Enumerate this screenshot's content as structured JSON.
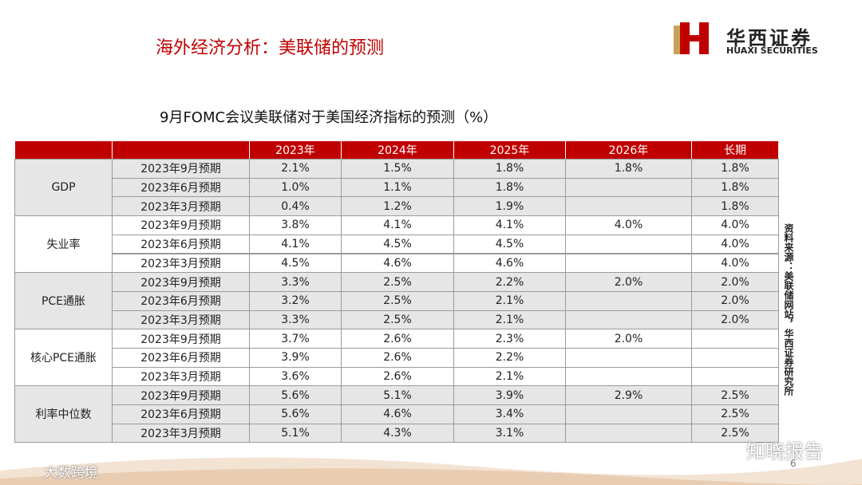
{
  "header": {
    "title": "海外经济分析：美联储的预测",
    "logo_cn": "华西证券",
    "logo_en": "HUAXI SECURITIES"
  },
  "table": {
    "title": "9月FOMC会议美联储对于美国经济指标的预测（%）",
    "columns": [
      "2023年",
      "2024年",
      "2025年",
      "2026年",
      "长期"
    ],
    "groups": [
      {
        "name": "GDP",
        "rows": [
          {
            "period": "2023年9月预期",
            "values": [
              "2.1%",
              "1.5%",
              "1.8%",
              "1.8%",
              "1.8%"
            ]
          },
          {
            "period": "2023年6月预期",
            "values": [
              "1.0%",
              "1.1%",
              "1.8%",
              null,
              "1.8%"
            ]
          },
          {
            "period": "2023年3月预期",
            "values": [
              "0.4%",
              "1.2%",
              "1.9%",
              null,
              "1.8%"
            ]
          }
        ]
      },
      {
        "name": "失业率",
        "rows": [
          {
            "period": "2023年9月预期",
            "values": [
              "3.8%",
              "4.1%",
              "4.1%",
              "4.0%",
              "4.0%"
            ]
          },
          {
            "period": "2023年6月预期",
            "values": [
              "4.1%",
              "4.5%",
              "4.5%",
              null,
              "4.0%"
            ]
          },
          {
            "period": "2023年3月预期",
            "values": [
              "4.5%",
              "4.6%",
              "4.6%",
              null,
              "4.0%"
            ]
          }
        ]
      },
      {
        "name": "PCE通胀",
        "rows": [
          {
            "period": "2023年9月预期",
            "values": [
              "3.3%",
              "2.5%",
              "2.2%",
              "2.0%",
              "2.0%"
            ]
          },
          {
            "period": "2023年6月预期",
            "values": [
              "3.2%",
              "2.5%",
              "2.1%",
              null,
              "2.0%"
            ]
          },
          {
            "period": "2023年3月预期",
            "values": [
              "3.3%",
              "2.5%",
              "2.1%",
              null,
              "2.0%"
            ]
          }
        ]
      },
      {
        "name": "核心PCE通胀",
        "rows": [
          {
            "period": "2023年9月预期",
            "values": [
              "3.7%",
              "2.6%",
              "2.3%",
              "2.0%",
              null
            ]
          },
          {
            "period": "2023年6月预期",
            "values": [
              "3.9%",
              "2.6%",
              "2.2%",
              null,
              null
            ]
          },
          {
            "period": "2023年3月预期",
            "values": [
              "3.6%",
              "2.6%",
              "2.1%",
              null,
              null
            ]
          }
        ]
      },
      {
        "name": "利率中位数",
        "rows": [
          {
            "period": "2023年9月预期",
            "values": [
              "5.6%",
              "5.1%",
              "3.9%",
              "2.9%",
              "2.5%"
            ]
          },
          {
            "period": "2023年6月预期",
            "values": [
              "5.6%",
              "4.6%",
              "3.4%",
              null,
              "2.5%"
            ]
          },
          {
            "period": "2023年3月预期",
            "values": [
              "5.1%",
              "4.3%",
              "3.1%",
              null,
              "2.5%"
            ]
          }
        ]
      }
    ]
  },
  "source": "资料来源：美联储网站，华西证券研究所",
  "page_number": "6",
  "watermarks": [
    "知晓报告",
    "大数跨境"
  ]
}
